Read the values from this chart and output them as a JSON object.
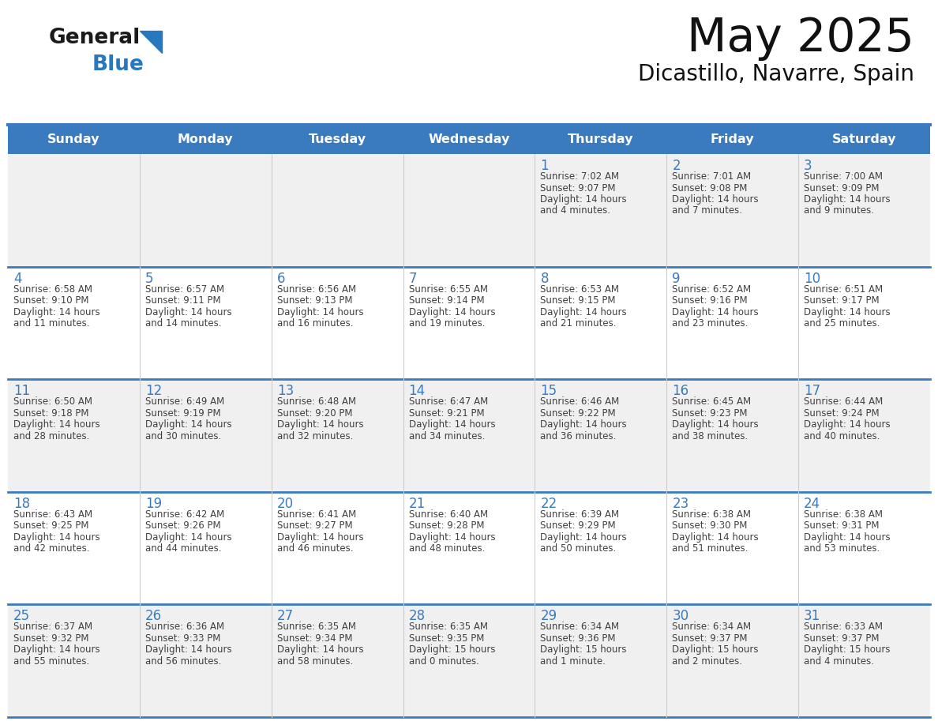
{
  "title": "May 2025",
  "subtitle": "Dicastillo, Navarre, Spain",
  "days_of_week": [
    "Sunday",
    "Monday",
    "Tuesday",
    "Wednesday",
    "Thursday",
    "Friday",
    "Saturday"
  ],
  "header_bg": "#3a7abf",
  "header_text": "#ffffff",
  "row_bg_odd": "#f0f0f0",
  "row_bg_even": "#ffffff",
  "day_number_color": "#3a7abf",
  "text_color": "#404040",
  "separator_color": "#3a7abf",
  "logo_general_color": "#1a1a1a",
  "logo_blue_color": "#2878c0",
  "calendar_data": [
    {
      "day": 1,
      "col": 4,
      "row": 0,
      "sunrise": "7:02 AM",
      "sunset": "9:07 PM",
      "daylight_line1": "Daylight: 14 hours",
      "daylight_line2": "and 4 minutes."
    },
    {
      "day": 2,
      "col": 5,
      "row": 0,
      "sunrise": "7:01 AM",
      "sunset": "9:08 PM",
      "daylight_line1": "Daylight: 14 hours",
      "daylight_line2": "and 7 minutes."
    },
    {
      "day": 3,
      "col": 6,
      "row": 0,
      "sunrise": "7:00 AM",
      "sunset": "9:09 PM",
      "daylight_line1": "Daylight: 14 hours",
      "daylight_line2": "and 9 minutes."
    },
    {
      "day": 4,
      "col": 0,
      "row": 1,
      "sunrise": "6:58 AM",
      "sunset": "9:10 PM",
      "daylight_line1": "Daylight: 14 hours",
      "daylight_line2": "and 11 minutes."
    },
    {
      "day": 5,
      "col": 1,
      "row": 1,
      "sunrise": "6:57 AM",
      "sunset": "9:11 PM",
      "daylight_line1": "Daylight: 14 hours",
      "daylight_line2": "and 14 minutes."
    },
    {
      "day": 6,
      "col": 2,
      "row": 1,
      "sunrise": "6:56 AM",
      "sunset": "9:13 PM",
      "daylight_line1": "Daylight: 14 hours",
      "daylight_line2": "and 16 minutes."
    },
    {
      "day": 7,
      "col": 3,
      "row": 1,
      "sunrise": "6:55 AM",
      "sunset": "9:14 PM",
      "daylight_line1": "Daylight: 14 hours",
      "daylight_line2": "and 19 minutes."
    },
    {
      "day": 8,
      "col": 4,
      "row": 1,
      "sunrise": "6:53 AM",
      "sunset": "9:15 PM",
      "daylight_line1": "Daylight: 14 hours",
      "daylight_line2": "and 21 minutes."
    },
    {
      "day": 9,
      "col": 5,
      "row": 1,
      "sunrise": "6:52 AM",
      "sunset": "9:16 PM",
      "daylight_line1": "Daylight: 14 hours",
      "daylight_line2": "and 23 minutes."
    },
    {
      "day": 10,
      "col": 6,
      "row": 1,
      "sunrise": "6:51 AM",
      "sunset": "9:17 PM",
      "daylight_line1": "Daylight: 14 hours",
      "daylight_line2": "and 25 minutes."
    },
    {
      "day": 11,
      "col": 0,
      "row": 2,
      "sunrise": "6:50 AM",
      "sunset": "9:18 PM",
      "daylight_line1": "Daylight: 14 hours",
      "daylight_line2": "and 28 minutes."
    },
    {
      "day": 12,
      "col": 1,
      "row": 2,
      "sunrise": "6:49 AM",
      "sunset": "9:19 PM",
      "daylight_line1": "Daylight: 14 hours",
      "daylight_line2": "and 30 minutes."
    },
    {
      "day": 13,
      "col": 2,
      "row": 2,
      "sunrise": "6:48 AM",
      "sunset": "9:20 PM",
      "daylight_line1": "Daylight: 14 hours",
      "daylight_line2": "and 32 minutes."
    },
    {
      "day": 14,
      "col": 3,
      "row": 2,
      "sunrise": "6:47 AM",
      "sunset": "9:21 PM",
      "daylight_line1": "Daylight: 14 hours",
      "daylight_line2": "and 34 minutes."
    },
    {
      "day": 15,
      "col": 4,
      "row": 2,
      "sunrise": "6:46 AM",
      "sunset": "9:22 PM",
      "daylight_line1": "Daylight: 14 hours",
      "daylight_line2": "and 36 minutes."
    },
    {
      "day": 16,
      "col": 5,
      "row": 2,
      "sunrise": "6:45 AM",
      "sunset": "9:23 PM",
      "daylight_line1": "Daylight: 14 hours",
      "daylight_line2": "and 38 minutes."
    },
    {
      "day": 17,
      "col": 6,
      "row": 2,
      "sunrise": "6:44 AM",
      "sunset": "9:24 PM",
      "daylight_line1": "Daylight: 14 hours",
      "daylight_line2": "and 40 minutes."
    },
    {
      "day": 18,
      "col": 0,
      "row": 3,
      "sunrise": "6:43 AM",
      "sunset": "9:25 PM",
      "daylight_line1": "Daylight: 14 hours",
      "daylight_line2": "and 42 minutes."
    },
    {
      "day": 19,
      "col": 1,
      "row": 3,
      "sunrise": "6:42 AM",
      "sunset": "9:26 PM",
      "daylight_line1": "Daylight: 14 hours",
      "daylight_line2": "and 44 minutes."
    },
    {
      "day": 20,
      "col": 2,
      "row": 3,
      "sunrise": "6:41 AM",
      "sunset": "9:27 PM",
      "daylight_line1": "Daylight: 14 hours",
      "daylight_line2": "and 46 minutes."
    },
    {
      "day": 21,
      "col": 3,
      "row": 3,
      "sunrise": "6:40 AM",
      "sunset": "9:28 PM",
      "daylight_line1": "Daylight: 14 hours",
      "daylight_line2": "and 48 minutes."
    },
    {
      "day": 22,
      "col": 4,
      "row": 3,
      "sunrise": "6:39 AM",
      "sunset": "9:29 PM",
      "daylight_line1": "Daylight: 14 hours",
      "daylight_line2": "and 50 minutes."
    },
    {
      "day": 23,
      "col": 5,
      "row": 3,
      "sunrise": "6:38 AM",
      "sunset": "9:30 PM",
      "daylight_line1": "Daylight: 14 hours",
      "daylight_line2": "and 51 minutes."
    },
    {
      "day": 24,
      "col": 6,
      "row": 3,
      "sunrise": "6:38 AM",
      "sunset": "9:31 PM",
      "daylight_line1": "Daylight: 14 hours",
      "daylight_line2": "and 53 minutes."
    },
    {
      "day": 25,
      "col": 0,
      "row": 4,
      "sunrise": "6:37 AM",
      "sunset": "9:32 PM",
      "daylight_line1": "Daylight: 14 hours",
      "daylight_line2": "and 55 minutes."
    },
    {
      "day": 26,
      "col": 1,
      "row": 4,
      "sunrise": "6:36 AM",
      "sunset": "9:33 PM",
      "daylight_line1": "Daylight: 14 hours",
      "daylight_line2": "and 56 minutes."
    },
    {
      "day": 27,
      "col": 2,
      "row": 4,
      "sunrise": "6:35 AM",
      "sunset": "9:34 PM",
      "daylight_line1": "Daylight: 14 hours",
      "daylight_line2": "and 58 minutes."
    },
    {
      "day": 28,
      "col": 3,
      "row": 4,
      "sunrise": "6:35 AM",
      "sunset": "9:35 PM",
      "daylight_line1": "Daylight: 15 hours",
      "daylight_line2": "and 0 minutes."
    },
    {
      "day": 29,
      "col": 4,
      "row": 4,
      "sunrise": "6:34 AM",
      "sunset": "9:36 PM",
      "daylight_line1": "Daylight: 15 hours",
      "daylight_line2": "and 1 minute."
    },
    {
      "day": 30,
      "col": 5,
      "row": 4,
      "sunrise": "6:34 AM",
      "sunset": "9:37 PM",
      "daylight_line1": "Daylight: 15 hours",
      "daylight_line2": "and 2 minutes."
    },
    {
      "day": 31,
      "col": 6,
      "row": 4,
      "sunrise": "6:33 AM",
      "sunset": "9:37 PM",
      "daylight_line1": "Daylight: 15 hours",
      "daylight_line2": "and 4 minutes."
    }
  ],
  "fig_width": 11.88,
  "fig_height": 9.18,
  "dpi": 100
}
